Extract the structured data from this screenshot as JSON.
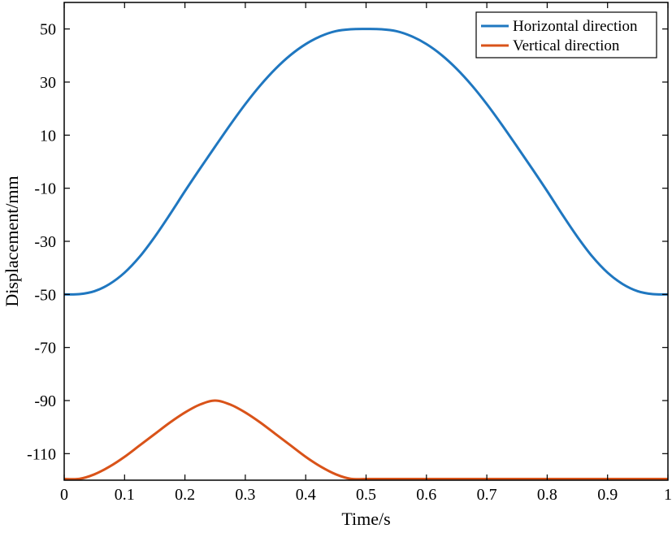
{
  "chart_data": {
    "type": "line",
    "title": "",
    "xlabel": "Time/s",
    "ylabel": "Displacement/mm",
    "xlim": [
      0,
      1
    ],
    "ylim": [
      -120,
      60
    ],
    "xticks": [
      "0",
      "0.1",
      "0.2",
      "0.3",
      "0.4",
      "0.5",
      "0.6",
      "0.7",
      "0.8",
      "0.9",
      "1"
    ],
    "yticks": [
      "50",
      "30",
      "10",
      "-10",
      "-30",
      "-50",
      "-70",
      "-90",
      "-110"
    ],
    "grid": false,
    "legend_position": "top-right",
    "series": [
      {
        "name": "Horizontal direction",
        "color": "#1f77c0",
        "x": [
          0,
          0.025,
          0.05,
          0.075,
          0.1,
          0.125,
          0.15,
          0.175,
          0.2,
          0.225,
          0.25,
          0.275,
          0.3,
          0.325,
          0.35,
          0.375,
          0.4,
          0.425,
          0.45,
          0.475,
          0.5,
          0.525,
          0.55,
          0.575,
          0.6,
          0.625,
          0.65,
          0.675,
          0.7,
          0.725,
          0.75,
          0.775,
          0.8,
          0.825,
          0.85,
          0.875,
          0.9,
          0.925,
          0.95,
          0.975,
          1
        ],
        "values": [
          -50,
          -49.9,
          -48.8,
          -46.1,
          -41.8,
          -35.8,
          -28.3,
          -19.9,
          -11.1,
          -2.6,
          5.7,
          13.9,
          21.7,
          28.8,
          35.0,
          40.2,
          44.3,
          47.3,
          49.2,
          49.9,
          50,
          49.9,
          49.2,
          47.3,
          44.3,
          40.2,
          35.0,
          28.8,
          21.7,
          13.9,
          5.7,
          -2.6,
          -11.1,
          -19.9,
          -28.3,
          -35.8,
          -41.8,
          -46.1,
          -48.8,
          -49.9,
          -50
        ]
      },
      {
        "name": "Vertical direction",
        "color": "#d95319",
        "x": [
          0,
          0.025,
          0.05,
          0.075,
          0.1,
          0.125,
          0.15,
          0.175,
          0.2,
          0.225,
          0.25,
          0.275,
          0.3,
          0.325,
          0.35,
          0.375,
          0.4,
          0.425,
          0.45,
          0.475,
          0.5,
          0.55,
          0.6,
          0.65,
          0.7,
          0.75,
          0.8,
          0.85,
          0.9,
          0.95,
          1
        ],
        "values": [
          -120,
          -119.5,
          -117.8,
          -114.9,
          -111.2,
          -106.9,
          -102.6,
          -98.3,
          -94.5,
          -91.5,
          -90,
          -91.5,
          -94.5,
          -98.3,
          -102.6,
          -106.9,
          -111.2,
          -114.9,
          -117.8,
          -119.5,
          -120,
          -120,
          -120,
          -120,
          -120,
          -120,
          -120,
          -120,
          -120,
          -120,
          -120
        ]
      }
    ]
  }
}
